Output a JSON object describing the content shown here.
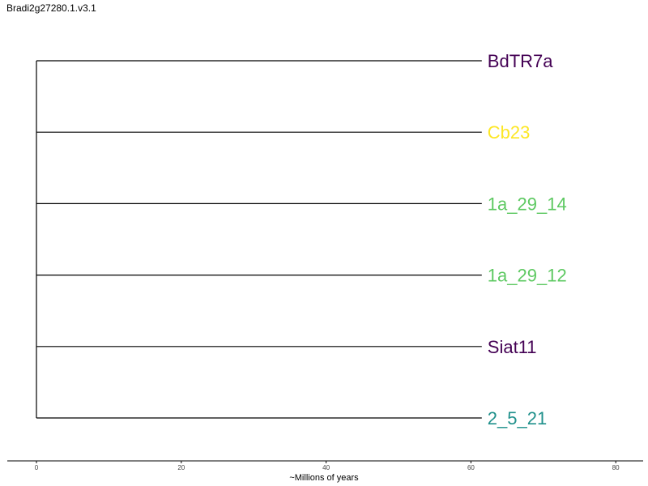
{
  "title": "Bradi2g27280.1.v3.1",
  "axis": {
    "label": "~Millions of years",
    "ticks": [
      "0",
      "20",
      "40",
      "60",
      "80"
    ],
    "range": [
      0,
      80
    ]
  },
  "tree": {
    "root_age": 0,
    "tip_age": 61.5,
    "tips": [
      {
        "label": "BdTR7a",
        "color": "#440154"
      },
      {
        "label": "Cb23",
        "color": "#FDE725"
      },
      {
        "label": "1a_29_14",
        "color": "#5EC962"
      },
      {
        "label": "1a_29_12",
        "color": "#5EC962"
      },
      {
        "label": "Siat11",
        "color": "#440154"
      },
      {
        "label": "2_5_21",
        "color": "#21918C"
      }
    ]
  }
}
